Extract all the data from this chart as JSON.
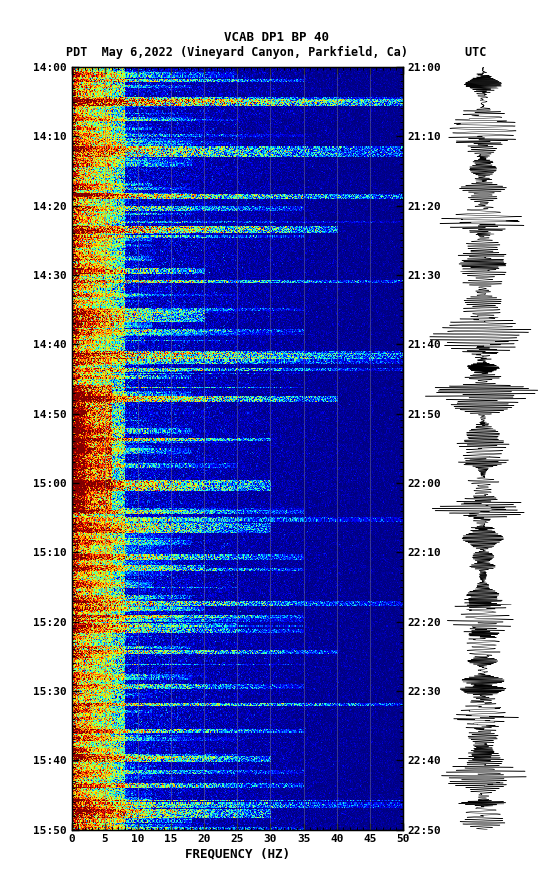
{
  "title_line1": "VCAB DP1 BP 40",
  "title_line2": "PDT  May 6,2022 (Vineyard Canyon, Parkfield, Ca)        UTC",
  "xlabel": "FREQUENCY (HZ)",
  "freq_min": 0,
  "freq_max": 50,
  "freq_ticks": [
    0,
    5,
    10,
    15,
    20,
    25,
    30,
    35,
    40,
    45,
    50
  ],
  "time_ticks_left": [
    "14:00",
    "14:10",
    "14:20",
    "14:30",
    "14:40",
    "14:50",
    "15:00",
    "15:10",
    "15:20",
    "15:30",
    "15:40",
    "15:50"
  ],
  "time_ticks_right": [
    "21:00",
    "21:10",
    "21:20",
    "21:30",
    "21:40",
    "21:50",
    "22:00",
    "22:10",
    "22:20",
    "22:30",
    "22:40",
    "22:50"
  ],
  "n_time": 720,
  "n_freq": 500,
  "bg_color": "#ffffff",
  "title_fontsize": 9,
  "tick_fontsize": 8,
  "label_fontsize": 9,
  "grid_color": "#888888",
  "grid_alpha": 0.6,
  "grid_lw": 0.5
}
